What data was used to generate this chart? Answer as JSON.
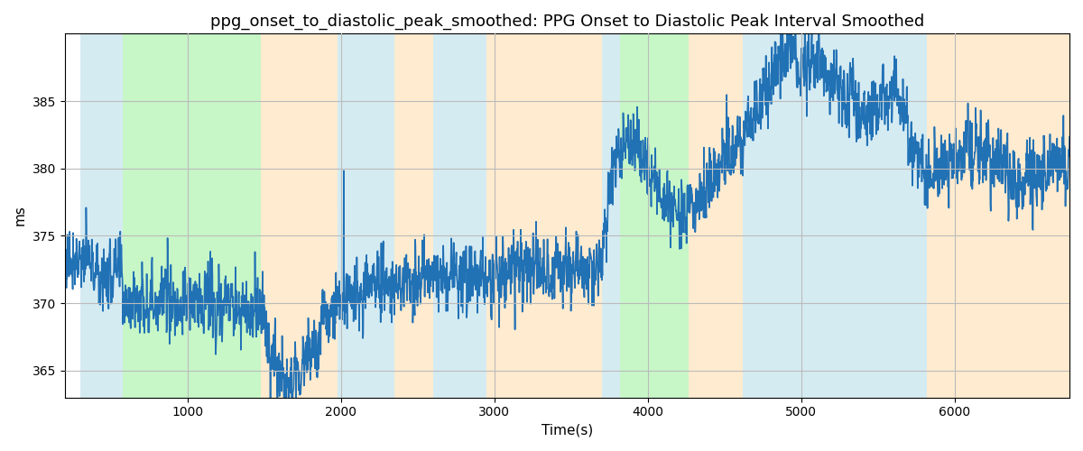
{
  "title": "ppg_onset_to_diastolic_peak_smoothed: PPG Onset to Diastolic Peak Interval Smoothed",
  "xlabel": "Time(s)",
  "ylabel": "ms",
  "xlim": [
    200,
    6750
  ],
  "ylim": [
    363,
    390
  ],
  "yticks": [
    365,
    370,
    375,
    380,
    385
  ],
  "bg_bands": [
    {
      "xmin": 300,
      "xmax": 580,
      "color": "#ADD8E6",
      "alpha": 0.5
    },
    {
      "xmin": 580,
      "xmax": 1480,
      "color": "#90EE90",
      "alpha": 0.5
    },
    {
      "xmin": 1480,
      "xmax": 1980,
      "color": "#FFD9A0",
      "alpha": 0.5
    },
    {
      "xmin": 1980,
      "xmax": 2350,
      "color": "#ADD8E6",
      "alpha": 0.5
    },
    {
      "xmin": 2350,
      "xmax": 2600,
      "color": "#FFD9A0",
      "alpha": 0.5
    },
    {
      "xmin": 2600,
      "xmax": 2950,
      "color": "#ADD8E6",
      "alpha": 0.5
    },
    {
      "xmin": 2950,
      "xmax": 3700,
      "color": "#FFD9A0",
      "alpha": 0.5
    },
    {
      "xmin": 3700,
      "xmax": 3820,
      "color": "#ADD8E6",
      "alpha": 0.5
    },
    {
      "xmin": 3820,
      "xmax": 4270,
      "color": "#90EE90",
      "alpha": 0.5
    },
    {
      "xmin": 4270,
      "xmax": 4620,
      "color": "#FFD9A0",
      "alpha": 0.5
    },
    {
      "xmin": 4620,
      "xmax": 5820,
      "color": "#ADD8E6",
      "alpha": 0.5
    },
    {
      "xmin": 5820,
      "xmax": 6750,
      "color": "#FFD9A0",
      "alpha": 0.5
    }
  ],
  "line_color": "#2171b5",
  "line_width": 1.2,
  "grid_color": "#bbbbbb",
  "title_fontsize": 13,
  "label_fontsize": 11,
  "tick_fontsize": 10,
  "seed": 77
}
